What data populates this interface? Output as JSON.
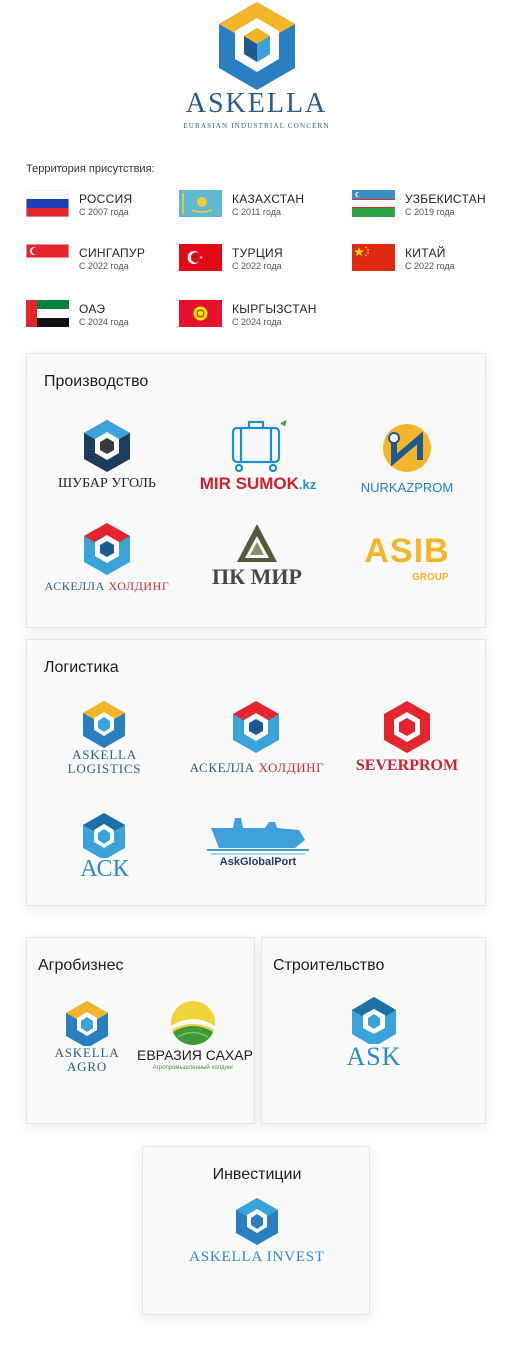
{
  "brand": {
    "name": "ASKELLA",
    "tagline": "EURASIAN INDUSTRIAL CONCERN",
    "colors": {
      "blue": "#2a5c8a",
      "yellow": "#f3b62b",
      "cyan": "#3aa3d9"
    }
  },
  "territory": {
    "title": "Территория присутствия:",
    "countries": [
      {
        "name": "РОССИЯ",
        "since": "С 2007 года",
        "flag": "russia-flag"
      },
      {
        "name": "КАЗАХСТАН",
        "since": "С 2011 года",
        "flag": "kazakhstan-flag"
      },
      {
        "name": "УЗБЕКИСТАН",
        "since": "С 2019 года",
        "flag": "uzbekistan-flag"
      },
      {
        "name": "СИНГАПУР",
        "since": "С 2022 года",
        "flag": "singapore-flag"
      },
      {
        "name": "ТУРЦИЯ",
        "since": "С 2022 года",
        "flag": "turkey-flag"
      },
      {
        "name": "КИТАЙ",
        "since": "С 2022 года",
        "flag": "china-flag"
      },
      {
        "name": "ОАЭ",
        "since": "С 2024 года",
        "flag": "uae-flag"
      },
      {
        "name": "КЫРГЫЗСТАН",
        "since": "С 2024 года",
        "flag": "kyrgyzstan-flag"
      }
    ]
  },
  "production": {
    "title": "Производство",
    "logos": {
      "shubar": "ШУБАР УГОЛЬ",
      "mirsumok_main": "MIR SUMOK",
      "mirsumok_tld": ".kz",
      "nurkazprom": "NURKAZPROM",
      "askella_holding_a": "АСКЕЛЛА ",
      "askella_holding_b": "ХОЛДИНГ",
      "pkmir": "ПК МИР",
      "asib_main": "ASIB",
      "asib_sub": "GROUP"
    }
  },
  "logistics": {
    "title": "Логистика",
    "logos": {
      "askella_logistics_1": "ASKELLA",
      "askella_logistics_2": "LOGISTICS",
      "askella_holding_a": "АСКЕЛЛА ",
      "askella_holding_b": "ХОЛДИНГ",
      "severprom": "SEVERPROM",
      "ack": "АСК",
      "askglobalport": "AskGlobalPort"
    }
  },
  "agro": {
    "title": "Агробизнес",
    "logos": {
      "askella_agro_1": "ASKELLA",
      "askella_agro_2": "AGRO",
      "evraziya": "ЕВРАЗИЯ САХАР",
      "evraziya_sub": "Агропромышленный холдинг"
    }
  },
  "construction": {
    "title": "Строительство",
    "logos": {
      "ask": "ASK"
    }
  },
  "investment": {
    "title": "Инвестиции",
    "logos": {
      "askella_invest": "ASKELLA INVEST"
    }
  }
}
